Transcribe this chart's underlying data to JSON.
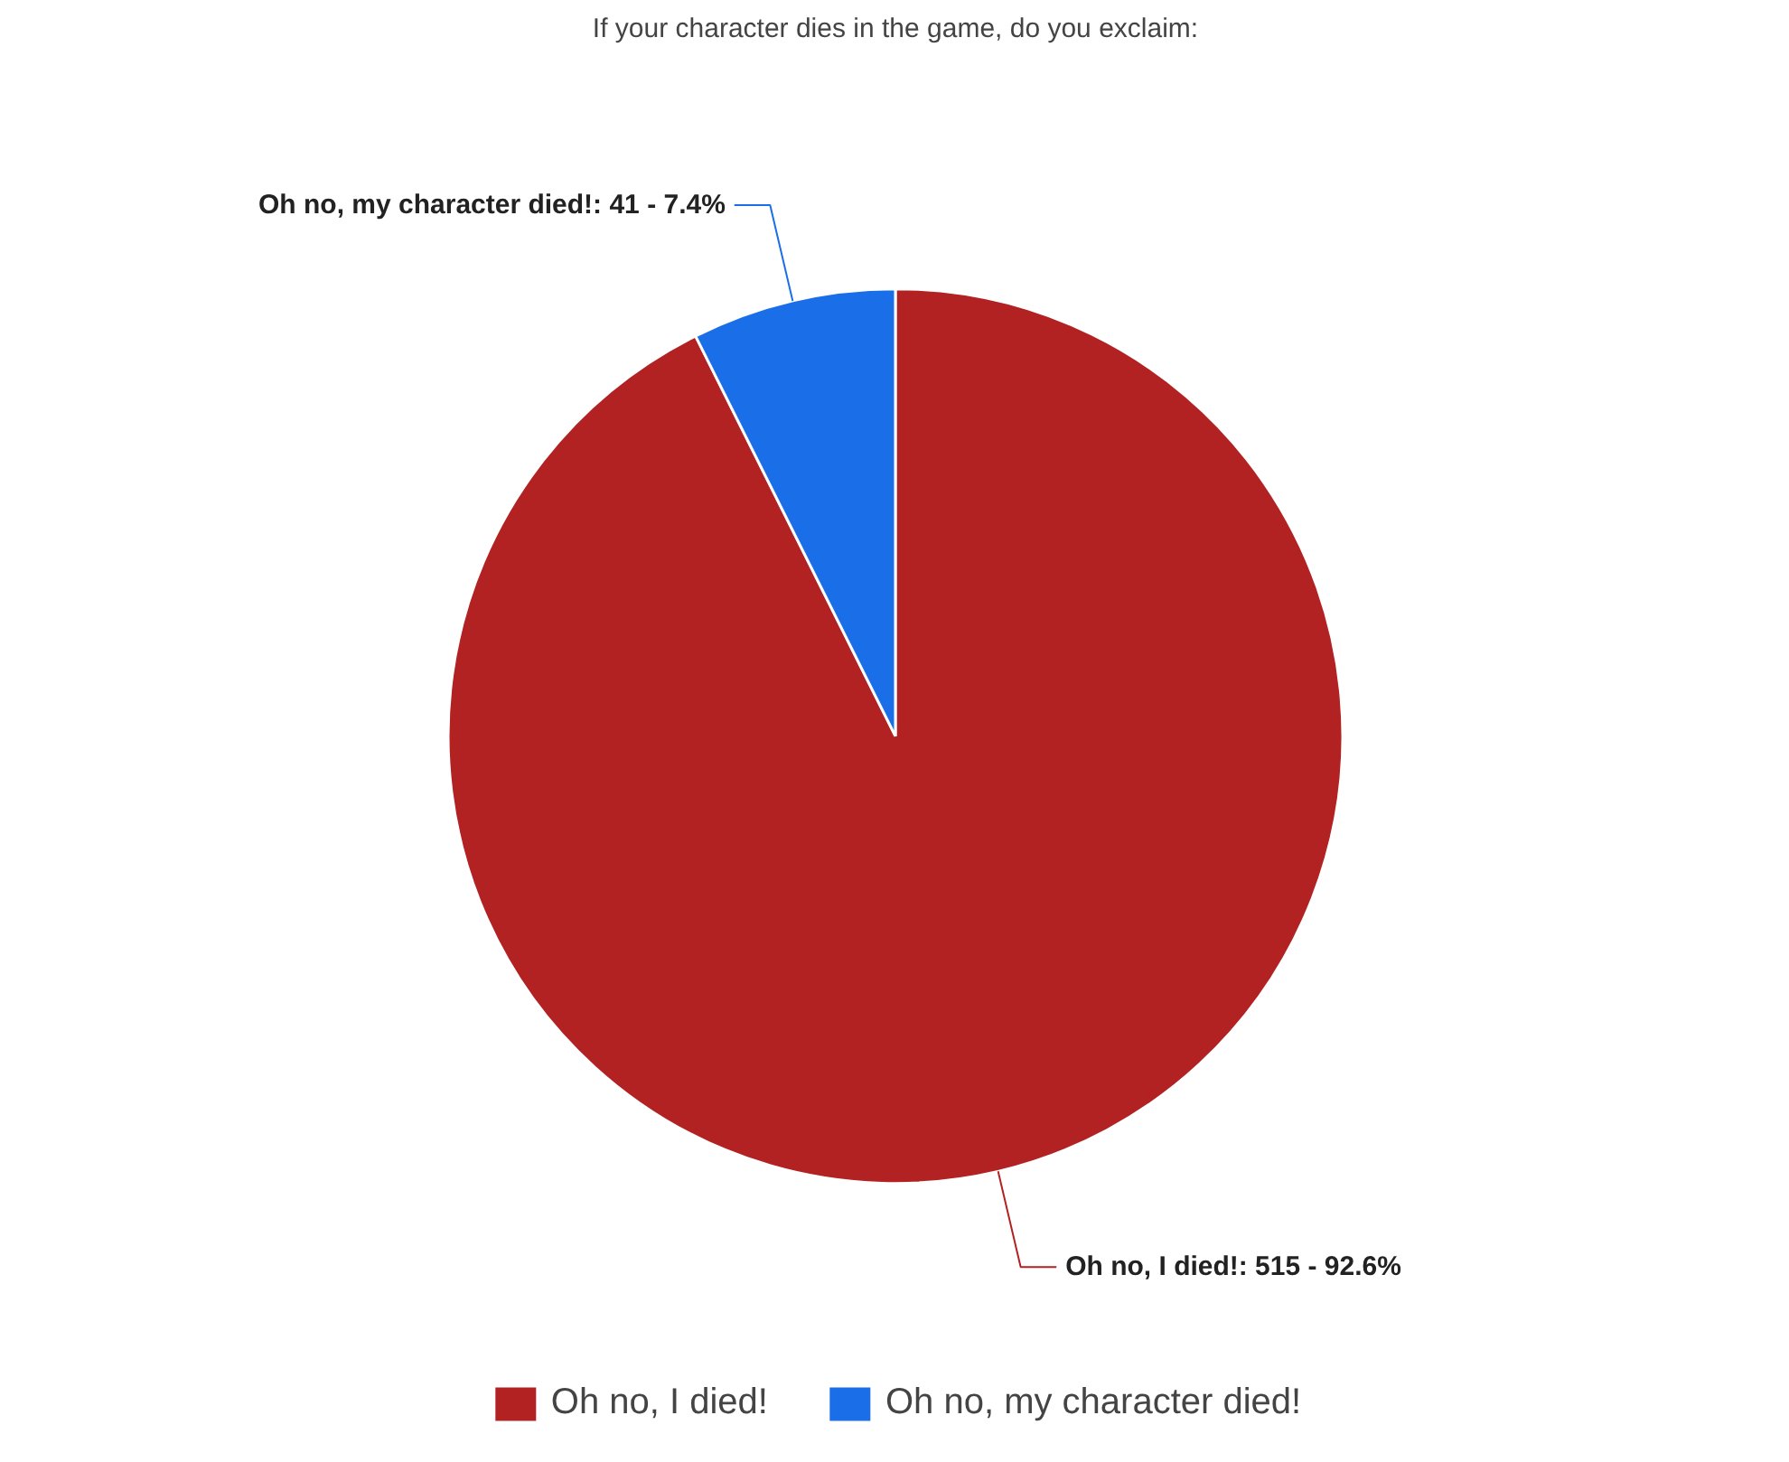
{
  "chart_data": {
    "type": "pie",
    "title": "If your character dies in the game, do you exclaim:",
    "categories": [
      "Oh no, I died!",
      "Oh no, my character died!"
    ],
    "values": [
      515,
      41
    ],
    "colors": [
      "#b22222",
      "#1a6ee8"
    ],
    "value_labels": [
      "Oh no, I died!: 515 - 92.6%",
      "Oh no, my character died!: 41 - 7.4%"
    ],
    "legend": "bottom"
  }
}
